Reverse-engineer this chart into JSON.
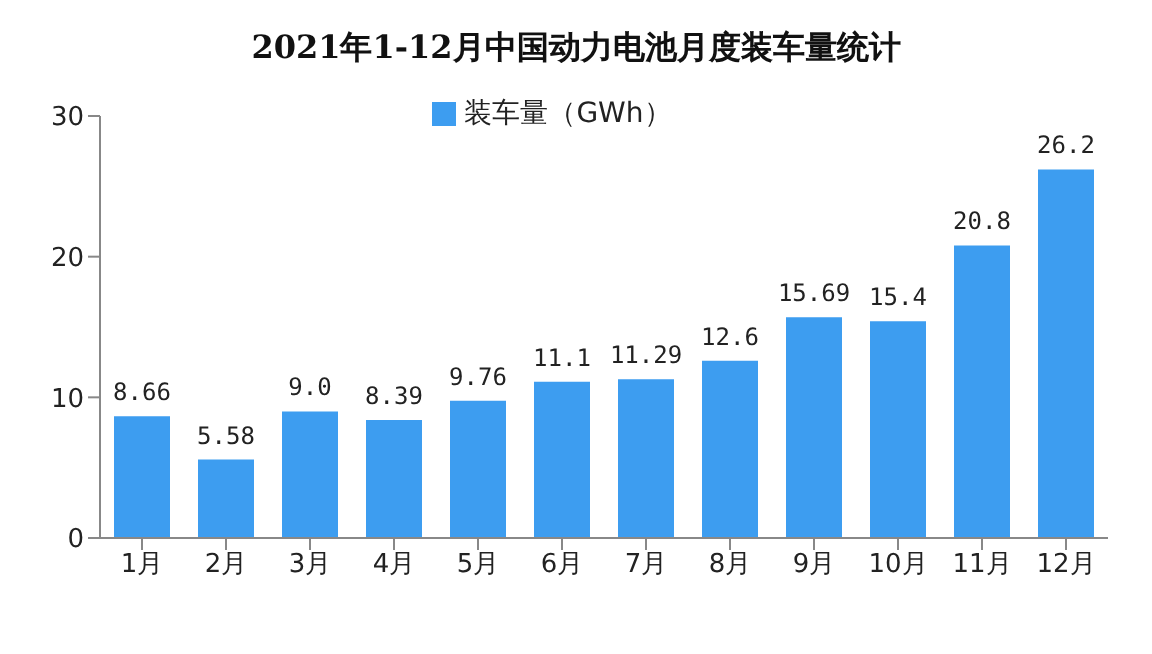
{
  "chart_data": {
    "type": "bar",
    "title": "2021年1-12月中国动力电池月度装车量统计",
    "categories": [
      "1月",
      "2月",
      "3月",
      "4月",
      "5月",
      "6月",
      "7月",
      "8月",
      "9月",
      "10月",
      "11月",
      "12月"
    ],
    "series": [
      {
        "name": "装车量（GWh）",
        "color": "#3d9df0",
        "values": [
          8.66,
          5.58,
          9.0,
          8.39,
          9.76,
          11.1,
          11.29,
          12.6,
          15.69,
          15.4,
          20.8,
          26.2
        ],
        "value_labels": [
          "8.66",
          "5.58",
          "9.0",
          "8.39",
          "9.76",
          "11.1",
          "11.29",
          "12.6",
          "15.69",
          "15.4",
          "20.8",
          "26.2"
        ]
      }
    ],
    "ylim": [
      0,
      30
    ],
    "yticks": [
      0,
      10,
      20,
      30
    ],
    "grid": false,
    "legend": "top"
  }
}
